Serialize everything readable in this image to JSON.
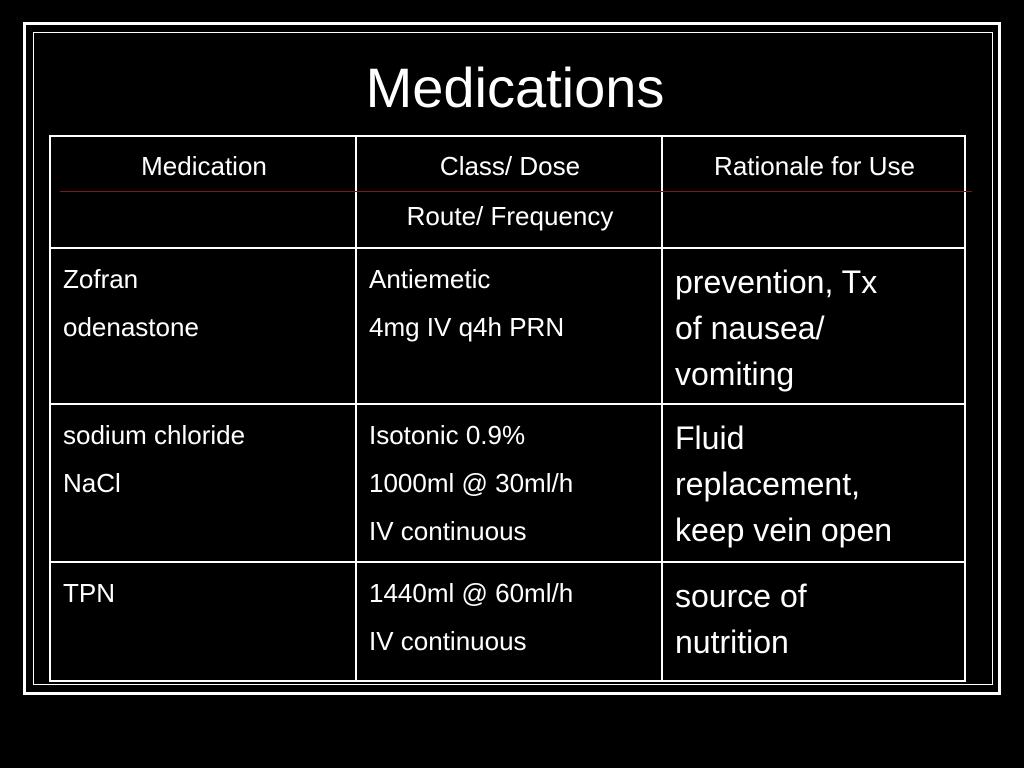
{
  "slide": {
    "title": "Medications"
  },
  "table": {
    "headers": [
      {
        "lines": [
          "Medication"
        ]
      },
      {
        "lines": [
          "Class/ Dose",
          "Route/ Frequency"
        ]
      },
      {
        "lines": [
          "Rationale for Use"
        ]
      }
    ],
    "rows": [
      {
        "medication": [
          "Zofran",
          "odenastone"
        ],
        "class_dose": [
          "Antiemetic",
          "4mg IV q4h PRN"
        ],
        "rationale": [
          "prevention, Tx",
          "of nausea/",
          "vomiting"
        ]
      },
      {
        "medication": [
          "sodium chloride",
          "NaCl"
        ],
        "class_dose": [
          "Isotonic 0.9%",
          "1000ml @ 30ml/h",
          "IV continuous"
        ],
        "rationale": [
          "Fluid",
          "replacement,",
          "keep vein open"
        ]
      },
      {
        "medication": [
          "TPN"
        ],
        "class_dose": [
          "1440ml @ 60ml/h",
          "IV continuous"
        ],
        "rationale": [
          "source of",
          "nutrition"
        ]
      }
    ]
  },
  "colors": {
    "background": "#000000",
    "text": "#ffffff",
    "header_rule": "#7a1a1a"
  }
}
